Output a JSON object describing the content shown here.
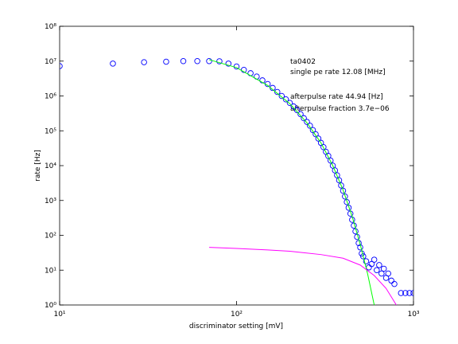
{
  "chart_data": {
    "type": "scatter",
    "xlabel": "discriminator setting [mV]",
    "ylabel": "rate [Hz]",
    "xscale": "log",
    "yscale": "log",
    "xlim": [
      10,
      1000
    ],
    "ylim": [
      1,
      100000000
    ],
    "xticks": [
      {
        "value": 10,
        "label": "10¹"
      },
      {
        "value": 100,
        "label": "10²"
      },
      {
        "value": 1000,
        "label": "10³"
      }
    ],
    "yticks": [
      {
        "value": 1,
        "label": "10⁰"
      },
      {
        "value": 10,
        "label": "10¹"
      },
      {
        "value": 100,
        "label": "10²"
      },
      {
        "value": 1000,
        "label": "10³"
      },
      {
        "value": 10000,
        "label": "10⁴"
      },
      {
        "value": 100000,
        "label": "10⁵"
      },
      {
        "value": 1000000,
        "label": "10⁶"
      },
      {
        "value": 10000000,
        "label": "10⁷"
      },
      {
        "value": 100000000,
        "label": "10⁸"
      }
    ],
    "annotations": [
      "ta0402",
      "single pe rate 12.08 [MHz]",
      "afterpulse rate 44.94 [Hz]",
      "afterpulse fraction 3.7e−06"
    ],
    "series": [
      {
        "color": "#0000ff",
        "marker": "o",
        "x": [
          10,
          20,
          30,
          40,
          50,
          60,
          70,
          80,
          90,
          100,
          110,
          120,
          130,
          140,
          150,
          160,
          170,
          180,
          190,
          200,
          210,
          220,
          230,
          240,
          250,
          260,
          270,
          280,
          290,
          300,
          310,
          320,
          330,
          340,
          350,
          360,
          370,
          380,
          390,
          400,
          410,
          420,
          430,
          440,
          450,
          460,
          470,
          480,
          490,
          500,
          510,
          520,
          540,
          560,
          580,
          600,
          620,
          640,
          660,
          680,
          700,
          720,
          750,
          780,
          850,
          900,
          950,
          1000
        ],
        "values": [
          7200000,
          8500000,
          9300000,
          9600000,
          10000000,
          10000000,
          10000000,
          9900000,
          8500000,
          7000000,
          5600000,
          4500000,
          3600000,
          2800000,
          2200000,
          1700000,
          1300000,
          1000000,
          800000,
          630000,
          500000,
          390000,
          300000,
          230000,
          180000,
          140000,
          105000,
          80000,
          60000,
          45000,
          34000,
          25000,
          19000,
          14000,
          10000,
          7300,
          5300,
          3800,
          2700,
          1900,
          1300,
          900,
          620,
          420,
          280,
          190,
          130,
          90,
          60,
          45,
          30,
          25,
          18,
          12,
          15,
          20,
          10,
          14,
          8,
          11,
          6,
          8,
          5,
          4,
          2.2,
          2.2,
          2.2,
          2.2
        ]
      },
      {
        "color": "#00ff00",
        "marker": "line",
        "x": [
          70,
          100,
          150,
          200,
          250,
          300,
          350,
          400,
          450,
          500,
          550,
          600
        ],
        "values": [
          11000000,
          6500000,
          2000000,
          600000,
          170000,
          45000,
          10000,
          2000,
          350,
          55,
          8,
          1
        ]
      },
      {
        "color": "#ff00ff",
        "marker": "line",
        "x": [
          70,
          100,
          150,
          200,
          300,
          400,
          500,
          600,
          700,
          800
        ],
        "values": [
          45,
          42,
          38,
          35,
          28,
          22,
          14,
          7,
          3,
          1
        ]
      }
    ]
  }
}
